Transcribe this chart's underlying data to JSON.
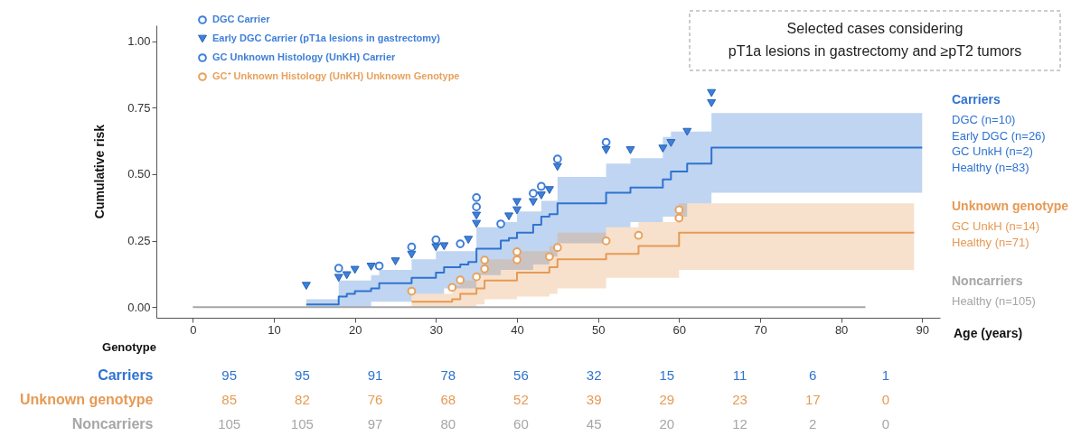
{
  "chart_data": [
    {
      "type": "step",
      "title": "Selected cases considering\npT1a lesions in gastrectomy and ≥pT2 tumors",
      "xlabel": "Age (years)",
      "ylabel": "Cumulative risk",
      "xlim": [
        -4.5,
        92.2
      ],
      "ylim": [
        -0.04,
        1.06
      ],
      "xticks": [
        0,
        10,
        20,
        30,
        40,
        50,
        60,
        70,
        80,
        90
      ],
      "yticks": [
        {
          "value": 0,
          "label": "0.00"
        },
        0.25,
        {
          "value": 0.5,
          "label": "0.50"
        },
        0.75,
        {
          "value": 1,
          "label": "1.00"
        }
      ],
      "grid": false,
      "legend": "top left",
      "annotations": [
        "DGC (n=10)",
        "Early DGC (n=26)",
        "GC UnkH (n=2)",
        "Healthy (n=83)",
        "GC UnkH (n=14)",
        "Healthy (n=71)",
        "Healthy (n=105)"
      ],
      "series": [
        {
          "name": "Carriers",
          "color": "#2f73d0",
          "x": [
            14,
            18,
            19,
            20,
            22,
            23,
            25,
            27,
            30,
            31,
            33,
            34,
            35,
            38,
            39,
            40,
            42,
            43,
            44,
            45,
            51,
            54,
            58,
            59,
            61,
            64,
            90
          ],
          "values": [
            0.01,
            0.04,
            0.05,
            0.06,
            0.07,
            0.09,
            0.09,
            0.11,
            0.13,
            0.15,
            0.16,
            0.17,
            0.22,
            0.25,
            0.26,
            0.28,
            0.31,
            0.34,
            0.35,
            0.39,
            0.43,
            0.45,
            0.48,
            0.51,
            0.54,
            0.6,
            0.6
          ],
          "lower": [
            0,
            0,
            0,
            0,
            0.02,
            0.02,
            0.02,
            0.05,
            0.05,
            0.07,
            0.07,
            0.07,
            0.12,
            0.14,
            0.14,
            0.14,
            0.16,
            0.16,
            0.19,
            0.24,
            0.3,
            0.32,
            0.34,
            0.34,
            0.39,
            0.43,
            0.43
          ],
          "upper": [
            0.03,
            0.1,
            0.1,
            0.1,
            0.12,
            0.14,
            0.14,
            0.18,
            0.21,
            0.21,
            0.21,
            0.21,
            0.3,
            0.32,
            0.32,
            0.36,
            0.36,
            0.4,
            0.4,
            0.49,
            0.54,
            0.56,
            0.64,
            0.66,
            0.66,
            0.73,
            0.73
          ]
        },
        {
          "name": "Unknown genotype",
          "color": "#e69a55",
          "x": [
            27,
            32,
            33,
            35,
            36,
            40,
            44,
            45,
            51,
            55,
            60,
            89
          ],
          "values": [
            0.02,
            0.03,
            0.05,
            0.07,
            0.1,
            0.13,
            0.15,
            0.18,
            0.2,
            0.23,
            0.28,
            0.28
          ],
          "lower": [
            0,
            0,
            0,
            0.01,
            0.03,
            0.04,
            0.05,
            0.07,
            0.11,
            0.11,
            0.14,
            0.14
          ],
          "upper": [
            0.05,
            0.08,
            0.1,
            0.13,
            0.18,
            0.21,
            0.23,
            0.28,
            0.3,
            0.32,
            0.39,
            0.39
          ]
        },
        {
          "name": "Noncarriers",
          "color": "#a6a6a6",
          "x": [
            0,
            83
          ],
          "values": [
            0,
            0
          ]
        },
        {
          "name": "DGC Carrier",
          "type": "scatter",
          "marker": "circle",
          "color": "#3f7fd8",
          "x": [
            18,
            23,
            30,
            33,
            35,
            35,
            38,
            42,
            43,
            51
          ],
          "values": [
            0.146,
            0.155,
            0.253,
            0.238,
            0.412,
            0.377,
            0.313,
            0.428,
            0.454,
            0.62
          ]
        },
        {
          "name": "Early DGC Carrier (pT1a lesions in gastrectomy)",
          "type": "scatter",
          "marker": "triangle",
          "color": "#3f7fd8",
          "x": [
            14,
            18,
            19,
            20,
            22,
            25,
            27,
            30,
            31,
            34,
            35,
            35,
            39,
            40,
            40,
            42,
            43,
            44,
            45,
            51,
            54,
            58,
            59,
            61,
            64,
            64
          ],
          "values": [
            0.08,
            0.11,
            0.12,
            0.14,
            0.152,
            0.172,
            0.197,
            0.225,
            0.229,
            0.253,
            0.344,
            0.313,
            0.341,
            0.395,
            0.364,
            0.395,
            0.42,
            0.44,
            0.527,
            0.59,
            0.59,
            0.596,
            0.617,
            0.659,
            0.805,
            0.767
          ]
        },
        {
          "name": "GC Unknown Histology (UnKH) Carrier",
          "type": "scatter",
          "marker": "circle",
          "color": "#3f7fd8",
          "x": [
            27,
            45
          ],
          "values": [
            0.226,
            0.557
          ]
        },
        {
          "name": "GC⁺ Unknown Histology (UnKH) Unknown Genotype",
          "type": "scatter",
          "marker": "circle",
          "color": "#e8a15c",
          "x": [
            27,
            32,
            33,
            35,
            36,
            36,
            40,
            40,
            44,
            45,
            51,
            55,
            60,
            60
          ],
          "values": [
            0.06,
            0.074,
            0.102,
            0.114,
            0.144,
            0.177,
            0.178,
            0.208,
            0.19,
            0.224,
            0.249,
            0.27,
            0.366,
            0.335
          ]
        }
      ]
    },
    {
      "type": "heatmap",
      "ylabel": "Genotype",
      "tick_labels": "y",
      "data_labels": true,
      "categories": [
        "0",
        "10",
        "20",
        "30",
        "40",
        "50",
        "60",
        "70",
        "80",
        "90"
      ],
      "y_categories": [
        "Carriers",
        "Unknown genotype",
        "Noncarriers"
      ],
      "cells": [
        [
          95,
          95,
          91,
          78,
          56,
          32,
          15,
          11,
          6,
          1
        ],
        [
          85,
          82,
          76,
          68,
          52,
          39,
          29,
          23,
          17,
          0
        ],
        [
          105,
          105,
          97,
          80,
          60,
          45,
          20,
          12,
          2,
          0
        ]
      ]
    }
  ]
}
